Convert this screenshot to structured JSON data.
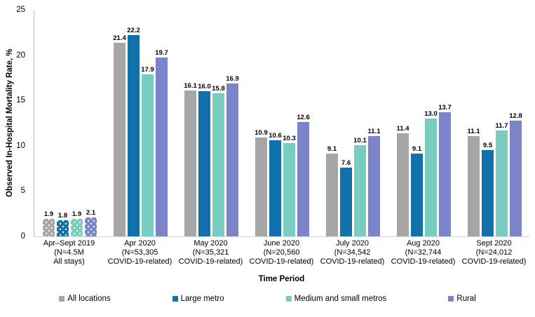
{
  "chart_data": {
    "type": "bar",
    "title": "",
    "xlabel": "Time Period",
    "ylabel": "Observed In-Hospital Mortality Rate, %",
    "ylim": [
      0,
      25
    ],
    "yticks": [
      0,
      5,
      10,
      15,
      20,
      25
    ],
    "grid": false,
    "legend_position": "bottom",
    "categories": [
      [
        "Apr–Sept 2019",
        "(N=4.5M",
        "All stays)"
      ],
      [
        "Apr 2020",
        "(N=53,305",
        "COVID-19-related)"
      ],
      [
        "May 2020",
        "(N=35,321",
        "COVID-19-related)"
      ],
      [
        "June 2020",
        "(N=20,560",
        "COVID-19-related)"
      ],
      [
        "July 2020",
        "(N=34,542",
        "COVID-19-related)"
      ],
      [
        "Aug 2020",
        "(N=32,744",
        "COVID-19-related)"
      ],
      [
        "Sept 2020",
        "(N=24,012",
        "COVID-19-related)"
      ]
    ],
    "series": [
      {
        "name": "All locations",
        "color": "#a6a6a6",
        "values": [
          1.9,
          21.4,
          16.1,
          10.9,
          9.1,
          11.4,
          11.1
        ]
      },
      {
        "name": "Large metro",
        "color": "#1170aa",
        "values": [
          1.8,
          22.2,
          16.0,
          10.6,
          7.6,
          9.1,
          9.5
        ]
      },
      {
        "name": "Medium and small metros",
        "color": "#79ccc0",
        "values": [
          1.9,
          17.9,
          15.8,
          10.3,
          10.1,
          13.0,
          11.7
        ]
      },
      {
        "name": "Rural",
        "color": "#7b84c8",
        "values": [
          2.1,
          19.7,
          16.9,
          12.6,
          11.1,
          13.7,
          12.8
        ]
      }
    ],
    "first_group_pattern": "dotted",
    "value_label_decimals": 1
  }
}
